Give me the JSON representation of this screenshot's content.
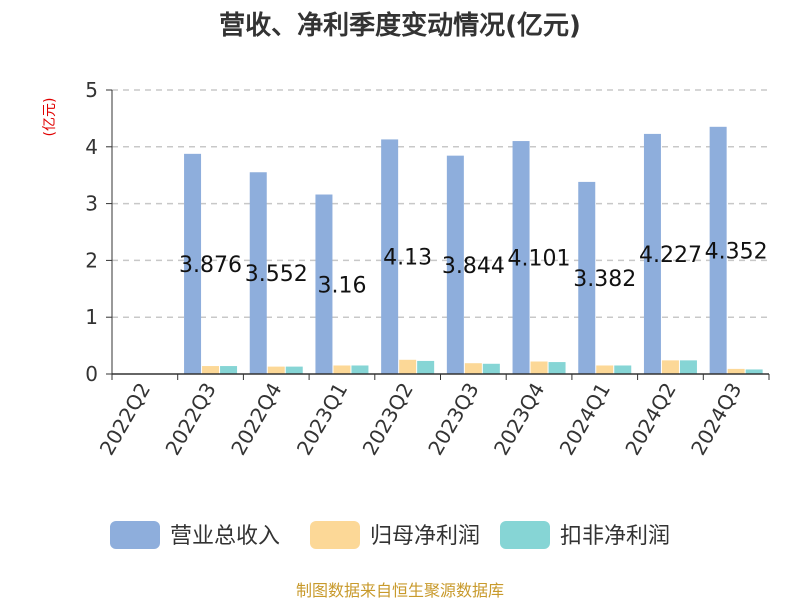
{
  "chart_data": {
    "type": "bar",
    "title": "营收、净利季度变动情况(亿元)",
    "ylabel": "(亿元)",
    "xlabel": "",
    "ylim": [
      0,
      5
    ],
    "yticks": [
      0,
      1,
      2,
      3,
      4,
      5
    ],
    "grid": true,
    "legend_position": "bottom",
    "categories": [
      "2022Q2",
      "2022Q3",
      "2022Q4",
      "2023Q1",
      "2023Q2",
      "2023Q3",
      "2023Q4",
      "2024Q1",
      "2024Q2",
      "2024Q3"
    ],
    "series": [
      {
        "name": "营业总收入",
        "color": "#8eaedc",
        "values": [
          null,
          3.876,
          3.552,
          3.16,
          4.13,
          3.844,
          4.101,
          3.382,
          4.227,
          4.352
        ],
        "labels": [
          "",
          "3.876",
          "3.552",
          "3.16",
          "4.13",
          "3.844",
          "4.101",
          "3.382",
          "4.227",
          "4.352"
        ]
      },
      {
        "name": "归母净利润",
        "color": "#fcd897",
        "values": [
          null,
          0.14,
          0.13,
          0.15,
          0.25,
          0.19,
          0.22,
          0.15,
          0.24,
          0.09
        ]
      },
      {
        "name": "扣非净利润",
        "color": "#86d5d5",
        "values": [
          null,
          0.14,
          0.13,
          0.15,
          0.23,
          0.18,
          0.21,
          0.15,
          0.24,
          0.08
        ]
      }
    ],
    "source": "制图数据来自恒生聚源数据库"
  }
}
